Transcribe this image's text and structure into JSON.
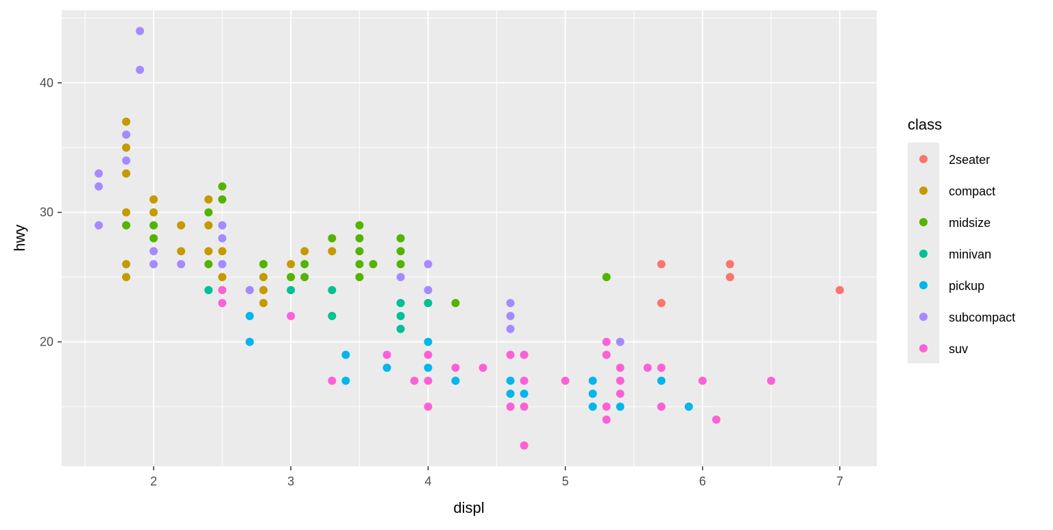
{
  "chart_data": {
    "type": "scatter",
    "title": "",
    "xlabel": "displ",
    "ylabel": "hwy",
    "xlim": [
      1.33,
      7.27
    ],
    "ylim": [
      10.4,
      45.6
    ],
    "x_ticks": [
      2,
      3,
      4,
      5,
      6,
      7
    ],
    "x_tick_labels": [
      "2",
      "3",
      "4",
      "5",
      "6",
      "7"
    ],
    "y_ticks": [
      20,
      30,
      40
    ],
    "y_tick_labels": [
      "20",
      "30",
      "40"
    ],
    "x_minor_ticks": [
      1.5,
      2.5,
      3.5,
      4.5,
      5.5,
      6.5
    ],
    "y_minor_ticks": [
      15,
      25,
      35,
      45
    ],
    "grid": true,
    "panel_background": "#EBEBEB",
    "grid_color": "#FFFFFF",
    "legend": {
      "title": "class",
      "position": "right",
      "key_background": "#EBEBEB"
    },
    "series": [
      {
        "name": "2seater",
        "color": "#F8766D",
        "points": [
          [
            5.7,
            26
          ],
          [
            5.7,
            23
          ],
          [
            6.2,
            26
          ],
          [
            6.2,
            25
          ],
          [
            7.0,
            24
          ]
        ]
      },
      {
        "name": "compact",
        "color": "#C49A00",
        "points": [
          [
            1.8,
            37
          ],
          [
            1.8,
            35
          ],
          [
            1.8,
            33
          ],
          [
            1.8,
            30
          ],
          [
            1.8,
            26
          ],
          [
            1.8,
            25
          ],
          [
            2.0,
            31
          ],
          [
            2.0,
            30
          ],
          [
            2.2,
            29
          ],
          [
            2.2,
            27
          ],
          [
            2.4,
            31
          ],
          [
            2.4,
            29
          ],
          [
            2.4,
            27
          ],
          [
            2.5,
            27
          ],
          [
            2.5,
            25
          ],
          [
            2.8,
            26
          ],
          [
            2.8,
            25
          ],
          [
            2.8,
            24
          ],
          [
            2.8,
            23
          ],
          [
            3.0,
            26
          ],
          [
            3.1,
            27
          ],
          [
            3.3,
            27
          ]
        ]
      },
      {
        "name": "midsize",
        "color": "#53B400",
        "points": [
          [
            1.8,
            29
          ],
          [
            2.0,
            29
          ],
          [
            2.0,
            28
          ],
          [
            2.4,
            30
          ],
          [
            2.4,
            26
          ],
          [
            2.5,
            32
          ],
          [
            2.5,
            31
          ],
          [
            2.8,
            26
          ],
          [
            3.0,
            25
          ],
          [
            3.1,
            26
          ],
          [
            3.1,
            25
          ],
          [
            3.3,
            28
          ],
          [
            3.5,
            29
          ],
          [
            3.5,
            28
          ],
          [
            3.5,
            27
          ],
          [
            3.5,
            26
          ],
          [
            3.5,
            25
          ],
          [
            3.6,
            26
          ],
          [
            3.8,
            28
          ],
          [
            3.8,
            27
          ],
          [
            3.8,
            26
          ],
          [
            4.2,
            23
          ],
          [
            5.3,
            25
          ]
        ]
      },
      {
        "name": "minivan",
        "color": "#00C094",
        "points": [
          [
            2.4,
            24
          ],
          [
            3.0,
            24
          ],
          [
            3.3,
            24
          ],
          [
            3.3,
            22
          ],
          [
            3.8,
            23
          ],
          [
            3.8,
            22
          ],
          [
            3.8,
            21
          ],
          [
            4.0,
            23
          ]
        ]
      },
      {
        "name": "pickup",
        "color": "#00B6EB",
        "points": [
          [
            2.7,
            22
          ],
          [
            2.7,
            20
          ],
          [
            3.4,
            19
          ],
          [
            3.4,
            17
          ],
          [
            3.7,
            18
          ],
          [
            4.0,
            20
          ],
          [
            4.0,
            18
          ],
          [
            4.2,
            17
          ],
          [
            4.6,
            17
          ],
          [
            4.6,
            16
          ],
          [
            4.7,
            16
          ],
          [
            5.2,
            17
          ],
          [
            5.2,
            16
          ],
          [
            5.2,
            15
          ],
          [
            5.4,
            15
          ],
          [
            5.7,
            17
          ],
          [
            5.9,
            15
          ]
        ]
      },
      {
        "name": "subcompact",
        "color": "#A58AFF",
        "points": [
          [
            1.6,
            33
          ],
          [
            1.6,
            32
          ],
          [
            1.6,
            29
          ],
          [
            1.8,
            36
          ],
          [
            1.8,
            34
          ],
          [
            1.9,
            44
          ],
          [
            1.9,
            41
          ],
          [
            2.0,
            27
          ],
          [
            2.0,
            26
          ],
          [
            2.2,
            26
          ],
          [
            2.5,
            29
          ],
          [
            2.5,
            28
          ],
          [
            2.5,
            26
          ],
          [
            2.7,
            24
          ],
          [
            3.8,
            25
          ],
          [
            4.0,
            26
          ],
          [
            4.0,
            24
          ],
          [
            4.6,
            23
          ],
          [
            4.6,
            22
          ],
          [
            4.6,
            21
          ],
          [
            5.4,
            20
          ]
        ]
      },
      {
        "name": "suv",
        "color": "#FB61D7",
        "points": [
          [
            2.5,
            24
          ],
          [
            2.5,
            23
          ],
          [
            3.0,
            22
          ],
          [
            3.3,
            17
          ],
          [
            3.7,
            19
          ],
          [
            3.9,
            17
          ],
          [
            4.0,
            19
          ],
          [
            4.0,
            17
          ],
          [
            4.0,
            15
          ],
          [
            4.2,
            18
          ],
          [
            4.4,
            18
          ],
          [
            4.6,
            19
          ],
          [
            4.6,
            15
          ],
          [
            4.7,
            19
          ],
          [
            4.7,
            17
          ],
          [
            4.7,
            15
          ],
          [
            4.7,
            12
          ],
          [
            5.0,
            17
          ],
          [
            5.3,
            20
          ],
          [
            5.3,
            19
          ],
          [
            5.3,
            15
          ],
          [
            5.3,
            14
          ],
          [
            5.4,
            18
          ],
          [
            5.4,
            17
          ],
          [
            5.4,
            16
          ],
          [
            5.6,
            18
          ],
          [
            5.7,
            18
          ],
          [
            5.7,
            15
          ],
          [
            6.0,
            17
          ],
          [
            6.1,
            14
          ],
          [
            6.5,
            17
          ]
        ]
      }
    ]
  }
}
